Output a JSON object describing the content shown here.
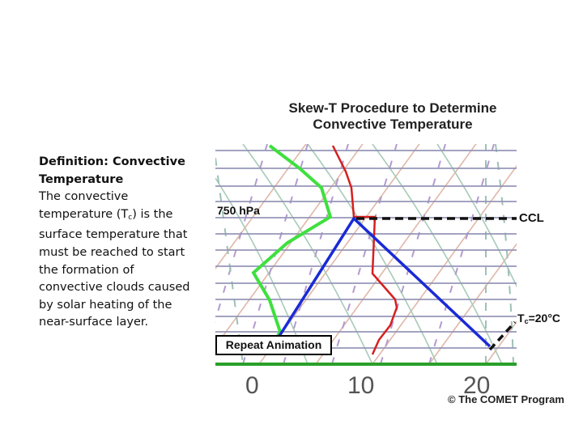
{
  "definition": {
    "title": "Definition: Convective Temperature",
    "text_before": "The convective temperature (T",
    "subscript": "c",
    "text_after": ") is the surface temperature that must be reached to start the formation of convective clouds caused by solar heating of the near-surface layer."
  },
  "figure": {
    "title": "Skew-T Procedure to Determine Convective Temperature",
    "pressure_label": "750 hPa",
    "ccl_label": "CCL",
    "tc_label_prefix": "T",
    "tc_label_sub": "c",
    "tc_label_suffix": "=20°C",
    "repeat_button": "Repeat Animation",
    "x_ticks": [
      "0",
      "10",
      "20"
    ],
    "copyright": "© The COMET Program"
  },
  "colors": {
    "isobar": "#8c8cb0",
    "isotherm": "#e0b0a0",
    "dry_adiabat": "#9fc8b0",
    "mixing_ratio": "#a98cc8",
    "moist_adiabat": "#7fa8a0",
    "temperature": "#d61f1f",
    "dewpoint": "#3ee03e",
    "parcel": "#1a2ad6",
    "ground": "#2aa02a",
    "ccl_line": "#111111"
  }
}
